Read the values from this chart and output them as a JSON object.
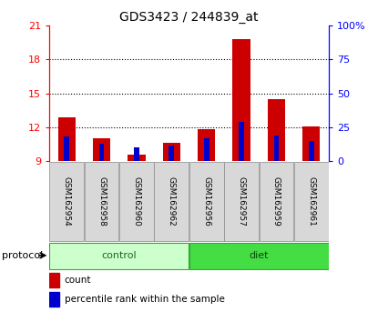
{
  "title": "GDS3423 / 244839_at",
  "samples": [
    "GSM162954",
    "GSM162958",
    "GSM162960",
    "GSM162962",
    "GSM162956",
    "GSM162957",
    "GSM162959",
    "GSM162961"
  ],
  "groups": [
    "control",
    "control",
    "control",
    "control",
    "diet",
    "diet",
    "diet",
    "diet"
  ],
  "red_values": [
    12.9,
    11.0,
    9.6,
    10.6,
    11.8,
    19.8,
    14.5,
    12.1
  ],
  "blue_values": [
    11.2,
    10.5,
    10.2,
    10.4,
    11.0,
    12.5,
    11.3,
    10.8
  ],
  "ylim_left": [
    9,
    21
  ],
  "ylim_right": [
    0,
    100
  ],
  "yticks_left": [
    9,
    12,
    15,
    18,
    21
  ],
  "yticks_right": [
    0,
    25,
    50,
    75,
    100
  ],
  "ytick_labels_right": [
    "0",
    "25",
    "50",
    "75",
    "100%"
  ],
  "bar_width": 0.5,
  "red_color": "#cc0000",
  "blue_color": "#0000cc",
  "grid_lines": [
    12,
    15,
    18
  ],
  "control_color": "#ccffcc",
  "diet_color": "#44dd44",
  "protocol_label": "protocol",
  "control_label": "control",
  "diet_label": "diet",
  "legend_count": "count",
  "legend_percentile": "percentile rank within the sample",
  "sample_box_color": "#d8d8d8",
  "plot_bg": "#ffffff"
}
